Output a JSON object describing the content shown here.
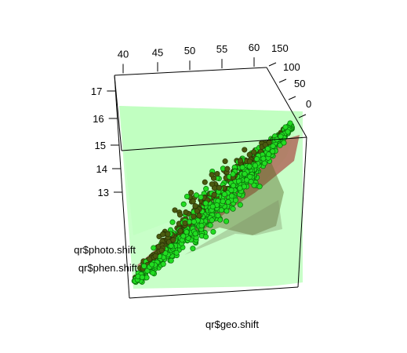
{
  "chart_data": {
    "type": "scatter",
    "subtype": "3d-scatter-with-fitted-planes",
    "title": "",
    "xlabel": "qr$geo.shift",
    "ylabel": "qr$photo.shift",
    "zlabel": "qr$phen.shift",
    "x_ticks": [
      "40",
      "45",
      "50",
      "55",
      "60"
    ],
    "y_ticks": [
      "150",
      "100",
      "50",
      "0"
    ],
    "z_ticks": [
      "17",
      "16",
      "15",
      "14",
      "13"
    ],
    "xlim": [
      38,
      62
    ],
    "ylim": [
      -20,
      160
    ],
    "zlim": [
      12,
      17.5
    ],
    "grid": false,
    "legend": "none",
    "colors": {
      "points_fill": "#22dd22",
      "points_edge": "#0a6a0a",
      "points_dark": "#4a5a10",
      "plane_green": "#7dff7d",
      "plane_red": "#a83434",
      "box": "#000000"
    },
    "series": [
      {
        "values_note": "point cloud",
        "x": [
          38,
          40,
          42,
          44,
          46,
          48,
          50,
          52,
          54,
          56,
          58,
          60,
          62
        ],
        "y": [
          10,
          20,
          30,
          40,
          55,
          70,
          80,
          90,
          100,
          110,
          120,
          130,
          140
        ],
        "z": [
          12.5,
          12.8,
          13.0,
          13.3,
          13.6,
          13.9,
          14.1,
          14.4,
          14.6,
          14.9,
          15.2,
          15.5,
          15.8
        ]
      }
    ]
  }
}
